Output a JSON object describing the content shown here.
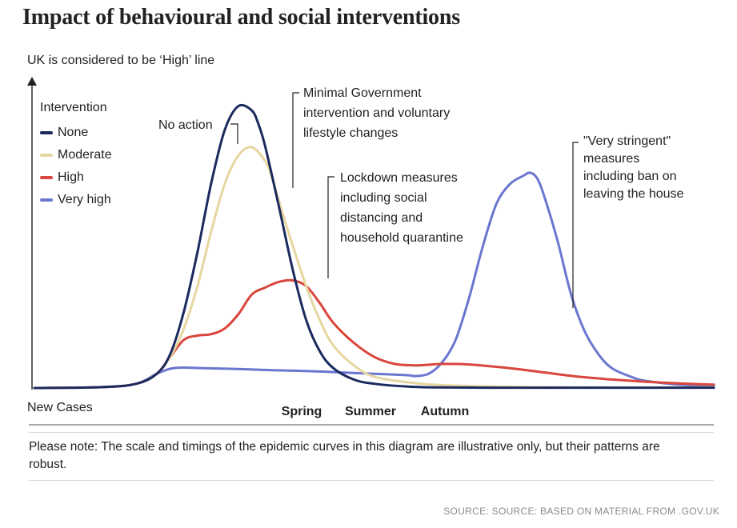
{
  "title": "Impact of behavioural and social interventions",
  "subtitle": "UK is considered to be ‘High’ line",
  "legend": {
    "title": "Intervention",
    "items": [
      {
        "label": "None",
        "color": "#1b2a5e"
      },
      {
        "label": "Moderate",
        "color": "#e6d6a0"
      },
      {
        "label": "High",
        "color": "#d9463c"
      },
      {
        "label": "Very high",
        "color": "#6a76cf"
      }
    ]
  },
  "note": "Please note: The scale and timings of the epidemic curves in this diagram are illustrative only, but their patterns are robust.",
  "source": "SOURCE: SOURCE: BASED ON MATERIAL FROM .GOV.UK",
  "chart_data": {
    "type": "line",
    "title": "Impact of behavioural and social interventions",
    "xlabel": "",
    "ylabel": "New Cases",
    "xlim": [
      0,
      100
    ],
    "ylim": [
      0,
      100
    ],
    "x_ticks": [
      {
        "x": 39.7,
        "label": "Spring"
      },
      {
        "x": 49.1,
        "label": "Summer"
      },
      {
        "x": 60.2,
        "label": "Autumn"
      }
    ],
    "y_origin_label": "New Cases",
    "series": [
      {
        "name": "None",
        "color": "#1b2a5e",
        "x": [
          0,
          10,
          15,
          18,
          20,
          22,
          24,
          26,
          28,
          30,
          32,
          33,
          34,
          36,
          38,
          40,
          42,
          44,
          47,
          50,
          55,
          60,
          70,
          80,
          90,
          100
        ],
        "y": [
          0,
          0.3,
          1.5,
          5,
          12,
          27,
          48,
          72,
          91,
          99.5,
          98,
          93,
          85,
          64,
          42,
          24,
          13,
          7,
          3,
          1.5,
          0.5,
          0.2,
          0.1,
          0.1,
          0.1,
          0.1
        ]
      },
      {
        "name": "Moderate",
        "color": "#e6d6a0",
        "x": [
          0,
          10,
          15,
          18,
          20,
          22,
          24,
          26,
          28,
          30,
          32,
          34,
          35,
          37,
          40,
          42,
          44,
          47,
          50,
          55,
          60,
          70,
          80,
          100
        ],
        "y": [
          0,
          0.3,
          1.5,
          5,
          11,
          21,
          36,
          55,
          72,
          82,
          85,
          80,
          74,
          58,
          36,
          24,
          15,
          8,
          4,
          2,
          1,
          0.4,
          0.2,
          0.2
        ]
      },
      {
        "name": "High",
        "color": "#d9463c",
        "x": [
          0,
          10,
          15,
          18,
          20,
          22,
          24,
          26,
          28,
          30,
          32,
          34,
          36,
          38,
          40,
          42,
          44,
          47,
          50,
          53,
          56,
          58,
          60,
          64,
          70,
          75,
          80,
          85,
          90,
          95,
          100
        ],
        "y": [
          0,
          0.3,
          1.5,
          5,
          11,
          17,
          18.5,
          19,
          21,
          26,
          33,
          35.5,
          37.5,
          38,
          36,
          30,
          23,
          16,
          11,
          8.5,
          8,
          8.2,
          8.5,
          8.3,
          7,
          5.5,
          4,
          3,
          2.2,
          1.6,
          1.2
        ]
      },
      {
        "name": "Very high",
        "color": "#6a76cf",
        "x": [
          0,
          10,
          15,
          18,
          20,
          22,
          25,
          30,
          35,
          40,
          45,
          50,
          55,
          56,
          58,
          60,
          62,
          64,
          66,
          68,
          70,
          72,
          73,
          74,
          75,
          77,
          79,
          81,
          83,
          85,
          88,
          90,
          95,
          100
        ],
        "y": [
          0,
          0.3,
          1.5,
          5,
          6.8,
          7.2,
          7,
          6.7,
          6.3,
          6,
          5.5,
          5,
          4.5,
          4.2,
          5,
          9,
          17,
          32,
          50,
          65,
          72,
          75,
          76,
          74,
          68,
          52,
          33,
          20,
          12,
          7,
          3.8,
          2.5,
          1.2,
          0.8
        ]
      }
    ],
    "annotations": [
      {
        "text": "No action"
      },
      {
        "text": "Minimal Government intervention and voluntary lifestyle changes"
      },
      {
        "text": "Lockdown measures including social distancing and household quarantine"
      },
      {
        "text": "\"Very stringent\" measures including ban on leaving the house"
      }
    ]
  }
}
